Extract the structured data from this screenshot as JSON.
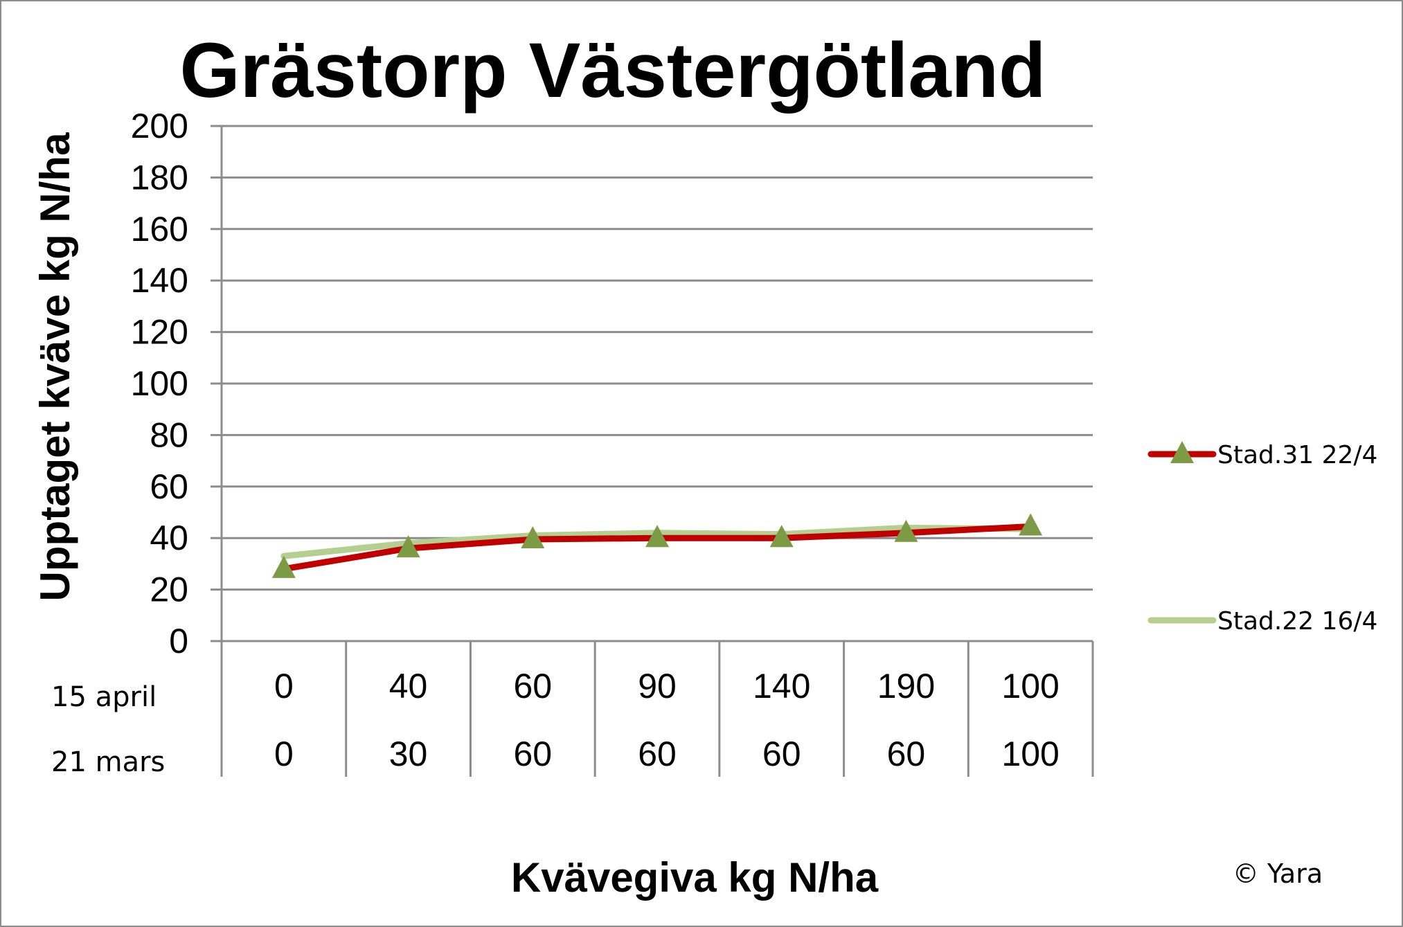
{
  "chart_data": {
    "type": "line",
    "title": "Grästorp Västergötland",
    "ylabel": "Upptaget kväve kg N/ha",
    "xlabel": "Kvävegiva kg N/ha",
    "ylim": [
      0,
      200
    ],
    "yticks": [
      0,
      20,
      40,
      60,
      80,
      100,
      120,
      140,
      160,
      180,
      200
    ],
    "grid": true,
    "legend_position": "right",
    "category_rows": [
      {
        "label": "15 april",
        "values": [
          "0",
          "40",
          "60",
          "90",
          "140",
          "190",
          "100"
        ]
      },
      {
        "label": "21 mars",
        "values": [
          "0",
          "30",
          "60",
          "60",
          "60",
          "60",
          "100"
        ]
      }
    ],
    "series": [
      {
        "name": "Stad.31 22/4",
        "values": [
          28,
          36,
          39.5,
          40,
          40,
          42,
          44.5
        ],
        "color": "#c00000",
        "marker": "triangle",
        "marker_color": "#7d9a45"
      },
      {
        "name": "Stad.22 16/4",
        "values": [
          33,
          38,
          41,
          42,
          41.5,
          44,
          43.5
        ],
        "color": "#b4cf90",
        "marker": "none"
      }
    ],
    "credit": "© Yara"
  }
}
